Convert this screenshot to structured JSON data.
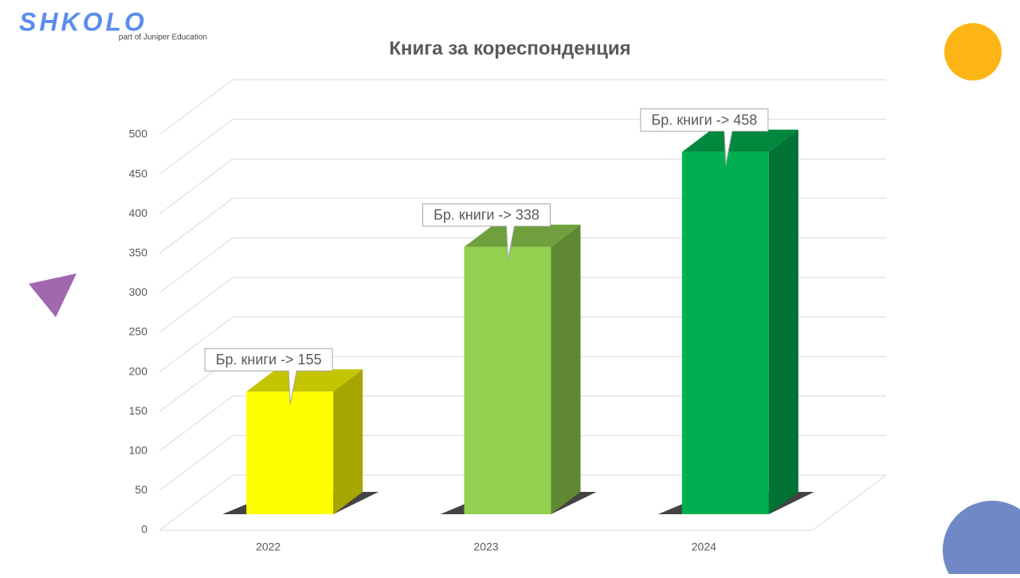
{
  "logo": {
    "name": "SHKOLO",
    "tagline": "part of Juniper Education"
  },
  "chart_data": {
    "type": "bar3d",
    "title": "Книга за кореспонденция",
    "categories": [
      "2022",
      "2023",
      "2024"
    ],
    "values": [
      155,
      338,
      458
    ],
    "value_labels": [
      "Бр. книги -> 155",
      "Бр. книги -> 338",
      "Бр. книги -> 458"
    ],
    "colors": [
      "#ffff00",
      "#92d050",
      "#00b050"
    ],
    "ylim": [
      0,
      500
    ],
    "yticks": [
      0,
      50,
      100,
      150,
      200,
      250,
      300,
      350,
      400,
      450,
      500
    ],
    "grid": true
  }
}
